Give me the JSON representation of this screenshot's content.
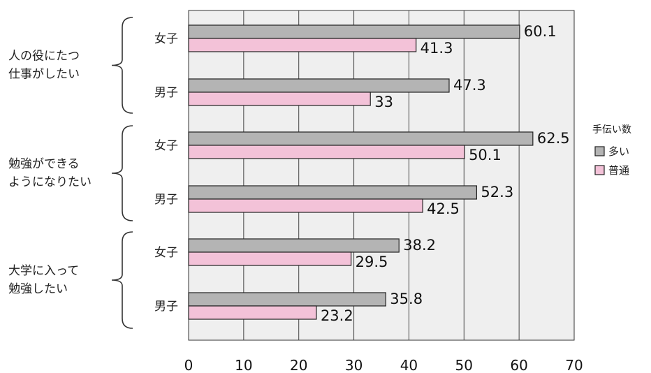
{
  "chart_data": {
    "type": "bar",
    "orientation": "horizontal",
    "groups": [
      {
        "label_lines": [
          "人の役にたつ",
          "仕事がしたい"
        ],
        "categories": [
          "女子",
          "男子"
        ]
      },
      {
        "label_lines": [
          "勉強ができる",
          "ようになりたい"
        ],
        "categories": [
          "女子",
          "男子"
        ]
      },
      {
        "label_lines": [
          "大学に入って",
          "勉強したい"
        ],
        "categories": [
          "女子",
          "男子"
        ]
      }
    ],
    "series": [
      {
        "name": "多い",
        "color": "#b4b4b4",
        "values": [
          60.1,
          47.3,
          62.5,
          52.3,
          38.2,
          35.8
        ]
      },
      {
        "name": "普通",
        "color": "#f3c2d8",
        "values": [
          41.3,
          33,
          50.1,
          42.5,
          29.5,
          23.2
        ]
      }
    ],
    "value_labels": [
      [
        "60.1",
        "47.3",
        "62.5",
        "52.3",
        "38.2",
        "35.8"
      ],
      [
        "41.3",
        "33",
        "50.1",
        "42.5",
        "29.5",
        "23.2"
      ]
    ],
    "xlim": [
      0,
      70
    ],
    "xticks": [
      "0",
      "10",
      "20",
      "30",
      "40",
      "50",
      "60",
      "70"
    ],
    "legend": {
      "title": "手伝い数",
      "placement": "right"
    },
    "grid": true,
    "plot_background": "#efefef"
  }
}
